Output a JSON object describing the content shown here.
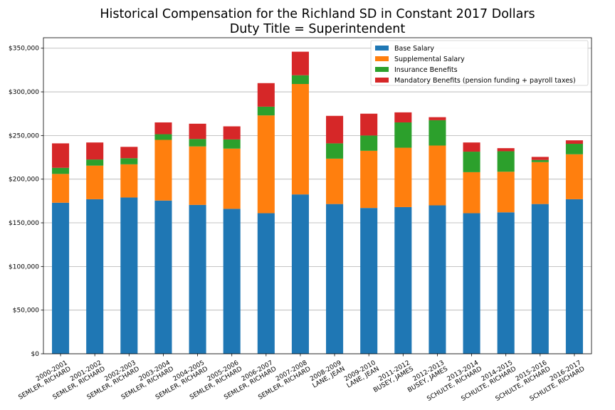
{
  "chart_data": {
    "type": "bar",
    "stacked": true,
    "title": "Historical Compensation for the Richland SD in Constant 2017 Dollars",
    "subtitle": "Duty Title = Superintendent",
    "xlabel": "",
    "ylabel": "",
    "ylim": [
      0,
      362000
    ],
    "yticks": [
      "$0",
      "$50,000",
      "$100,000",
      "$150,000",
      "$200,000",
      "$250,000",
      "$300,000",
      "$350,000"
    ],
    "ytick_values": [
      0,
      50000,
      100000,
      150000,
      200000,
      250000,
      300000,
      350000
    ],
    "grid": "y",
    "legend_position": "top-right",
    "categories": [
      {
        "year": "2000-2001",
        "name": "SEMLER, RICHARD"
      },
      {
        "year": "2001-2002",
        "name": "SEMLER, RICHARD"
      },
      {
        "year": "2002-2003",
        "name": "SEMLER, RICHARD"
      },
      {
        "year": "2003-2004",
        "name": "SEMLER, RICHARD"
      },
      {
        "year": "2004-2005",
        "name": "SEMLER, RICHARD"
      },
      {
        "year": "2005-2006",
        "name": "SEMLER, RICHARD"
      },
      {
        "year": "2006-2007",
        "name": "SEMLER, RICHARD"
      },
      {
        "year": "2007-2008",
        "name": "SEMLER, RICHARD"
      },
      {
        "year": "2008-2009",
        "name": "LANE, JEAN"
      },
      {
        "year": "2009-2010",
        "name": "LANE, JEAN"
      },
      {
        "year": "2011-2012",
        "name": "BUSEY, JAMES"
      },
      {
        "year": "2012-2013",
        "name": "BUSEY, JAMES"
      },
      {
        "year": "2013-2014",
        "name": "SCHULTE, RICHARD"
      },
      {
        "year": "2014-2015",
        "name": "SCHULTE, RICHARD"
      },
      {
        "year": "2015-2016",
        "name": "SCHULTE, RICHARD"
      },
      {
        "year": "2016-2017",
        "name": "SCHULTE, RICHARD"
      }
    ],
    "series": [
      {
        "name": "Base Salary",
        "color": "#1f77b4",
        "values": [
          173000,
          177000,
          179000,
          175500,
          170500,
          166000,
          161000,
          182500,
          171500,
          167000,
          168000,
          170000,
          161000,
          162000,
          171500,
          177000
        ]
      },
      {
        "name": "Supplemental Salary",
        "color": "#ff7f0e",
        "values": [
          33000,
          38500,
          38000,
          69500,
          67000,
          69000,
          112000,
          126500,
          52000,
          65500,
          68000,
          68500,
          47000,
          46500,
          48000,
          51500
        ]
      },
      {
        "name": "Insurance Benefits",
        "color": "#2ca02c",
        "values": [
          7000,
          7000,
          7000,
          6500,
          8500,
          10500,
          10000,
          10000,
          17500,
          17500,
          29000,
          29000,
          23500,
          23500,
          2500,
          12000
        ]
      },
      {
        "name": "Mandatory Benefits (pension funding + payroll taxes)",
        "color": "#d62728",
        "values": [
          28000,
          19500,
          13000,
          13500,
          17500,
          15000,
          27000,
          27000,
          31500,
          25000,
          11500,
          3500,
          10500,
          3500,
          3500,
          4000
        ]
      }
    ]
  }
}
